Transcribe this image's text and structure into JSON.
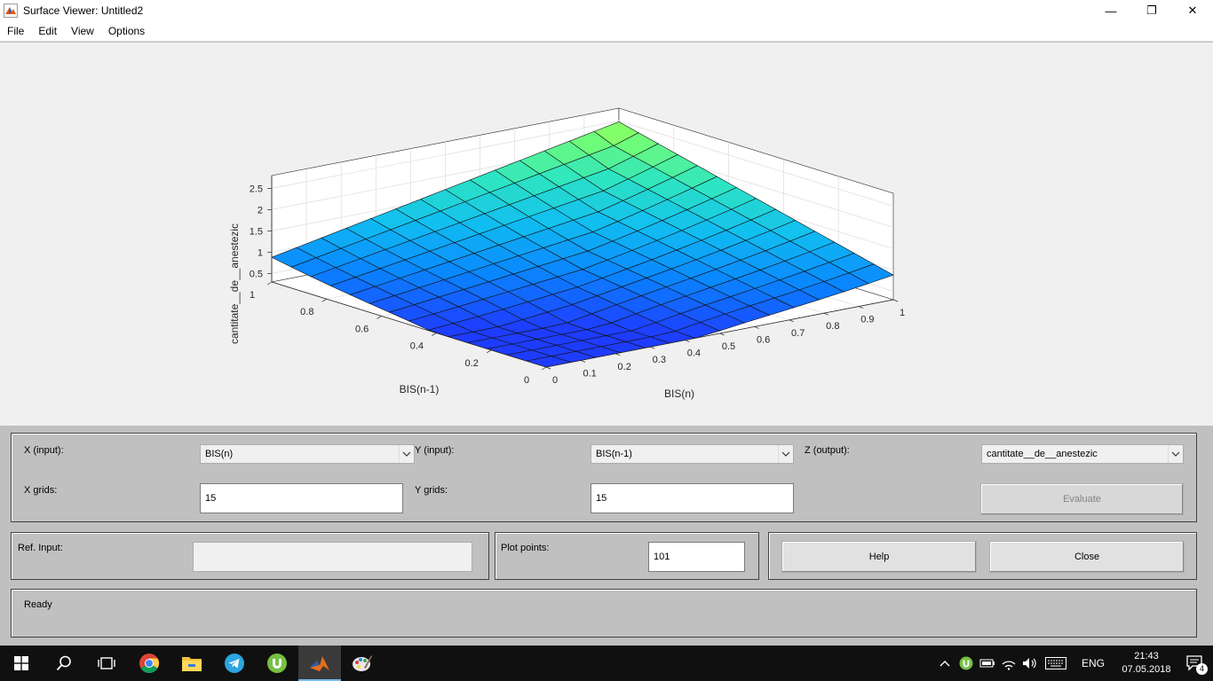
{
  "window": {
    "title": "Surface Viewer: Untitled2",
    "minimize_glyph": "—",
    "restore_glyph": "❐",
    "close_glyph": "✕"
  },
  "menu": {
    "items": [
      "File",
      "Edit",
      "View",
      "Options"
    ]
  },
  "plot": {
    "zlabel": "cantitate__de__anestezic",
    "xlabel": "BIS(n)",
    "ylabel": "BIS(n-1)",
    "z_ticks": [
      "0.5",
      "1",
      "1.5",
      "2",
      "2.5"
    ],
    "x_ticks": [
      "0",
      "0.1",
      "0.2",
      "0.3",
      "0.4",
      "0.5",
      "0.6",
      "0.7",
      "0.8",
      "0.9",
      "1"
    ],
    "y_ticks": [
      "0",
      "0.2",
      "0.4",
      "0.6",
      "0.8",
      "1"
    ],
    "colormap": [
      "#1e3cff",
      "#0a87ff",
      "#11bff0",
      "#2ee6c0",
      "#7aff6e",
      "#d7ff3c"
    ],
    "grid": 15
  },
  "controls": {
    "x_input_label": "X (input):",
    "x_input_value": "BIS(n)",
    "y_input_label": "Y (input):",
    "y_input_value": "BIS(n-1)",
    "z_output_label": "Z (output):",
    "z_output_value": "cantitate__de__anestezic",
    "x_grids_label": "X grids:",
    "x_grids_value": "15",
    "y_grids_label": "Y grids:",
    "y_grids_value": "15",
    "evaluate_label": "Evaluate",
    "ref_input_label": "Ref. Input:",
    "ref_input_value": "",
    "plot_points_label": "Plot points:",
    "plot_points_value": "101",
    "help_label": "Help",
    "close_label": "Close",
    "status": "Ready"
  },
  "taskbar": {
    "apps": [
      "windows-start",
      "search",
      "task-view",
      "chrome",
      "file-explorer",
      "telegram",
      "utorrent",
      "matlab",
      "paint"
    ],
    "language": "ENG",
    "time": "21:43",
    "date": "07.05.2018",
    "notification_count": "4"
  }
}
